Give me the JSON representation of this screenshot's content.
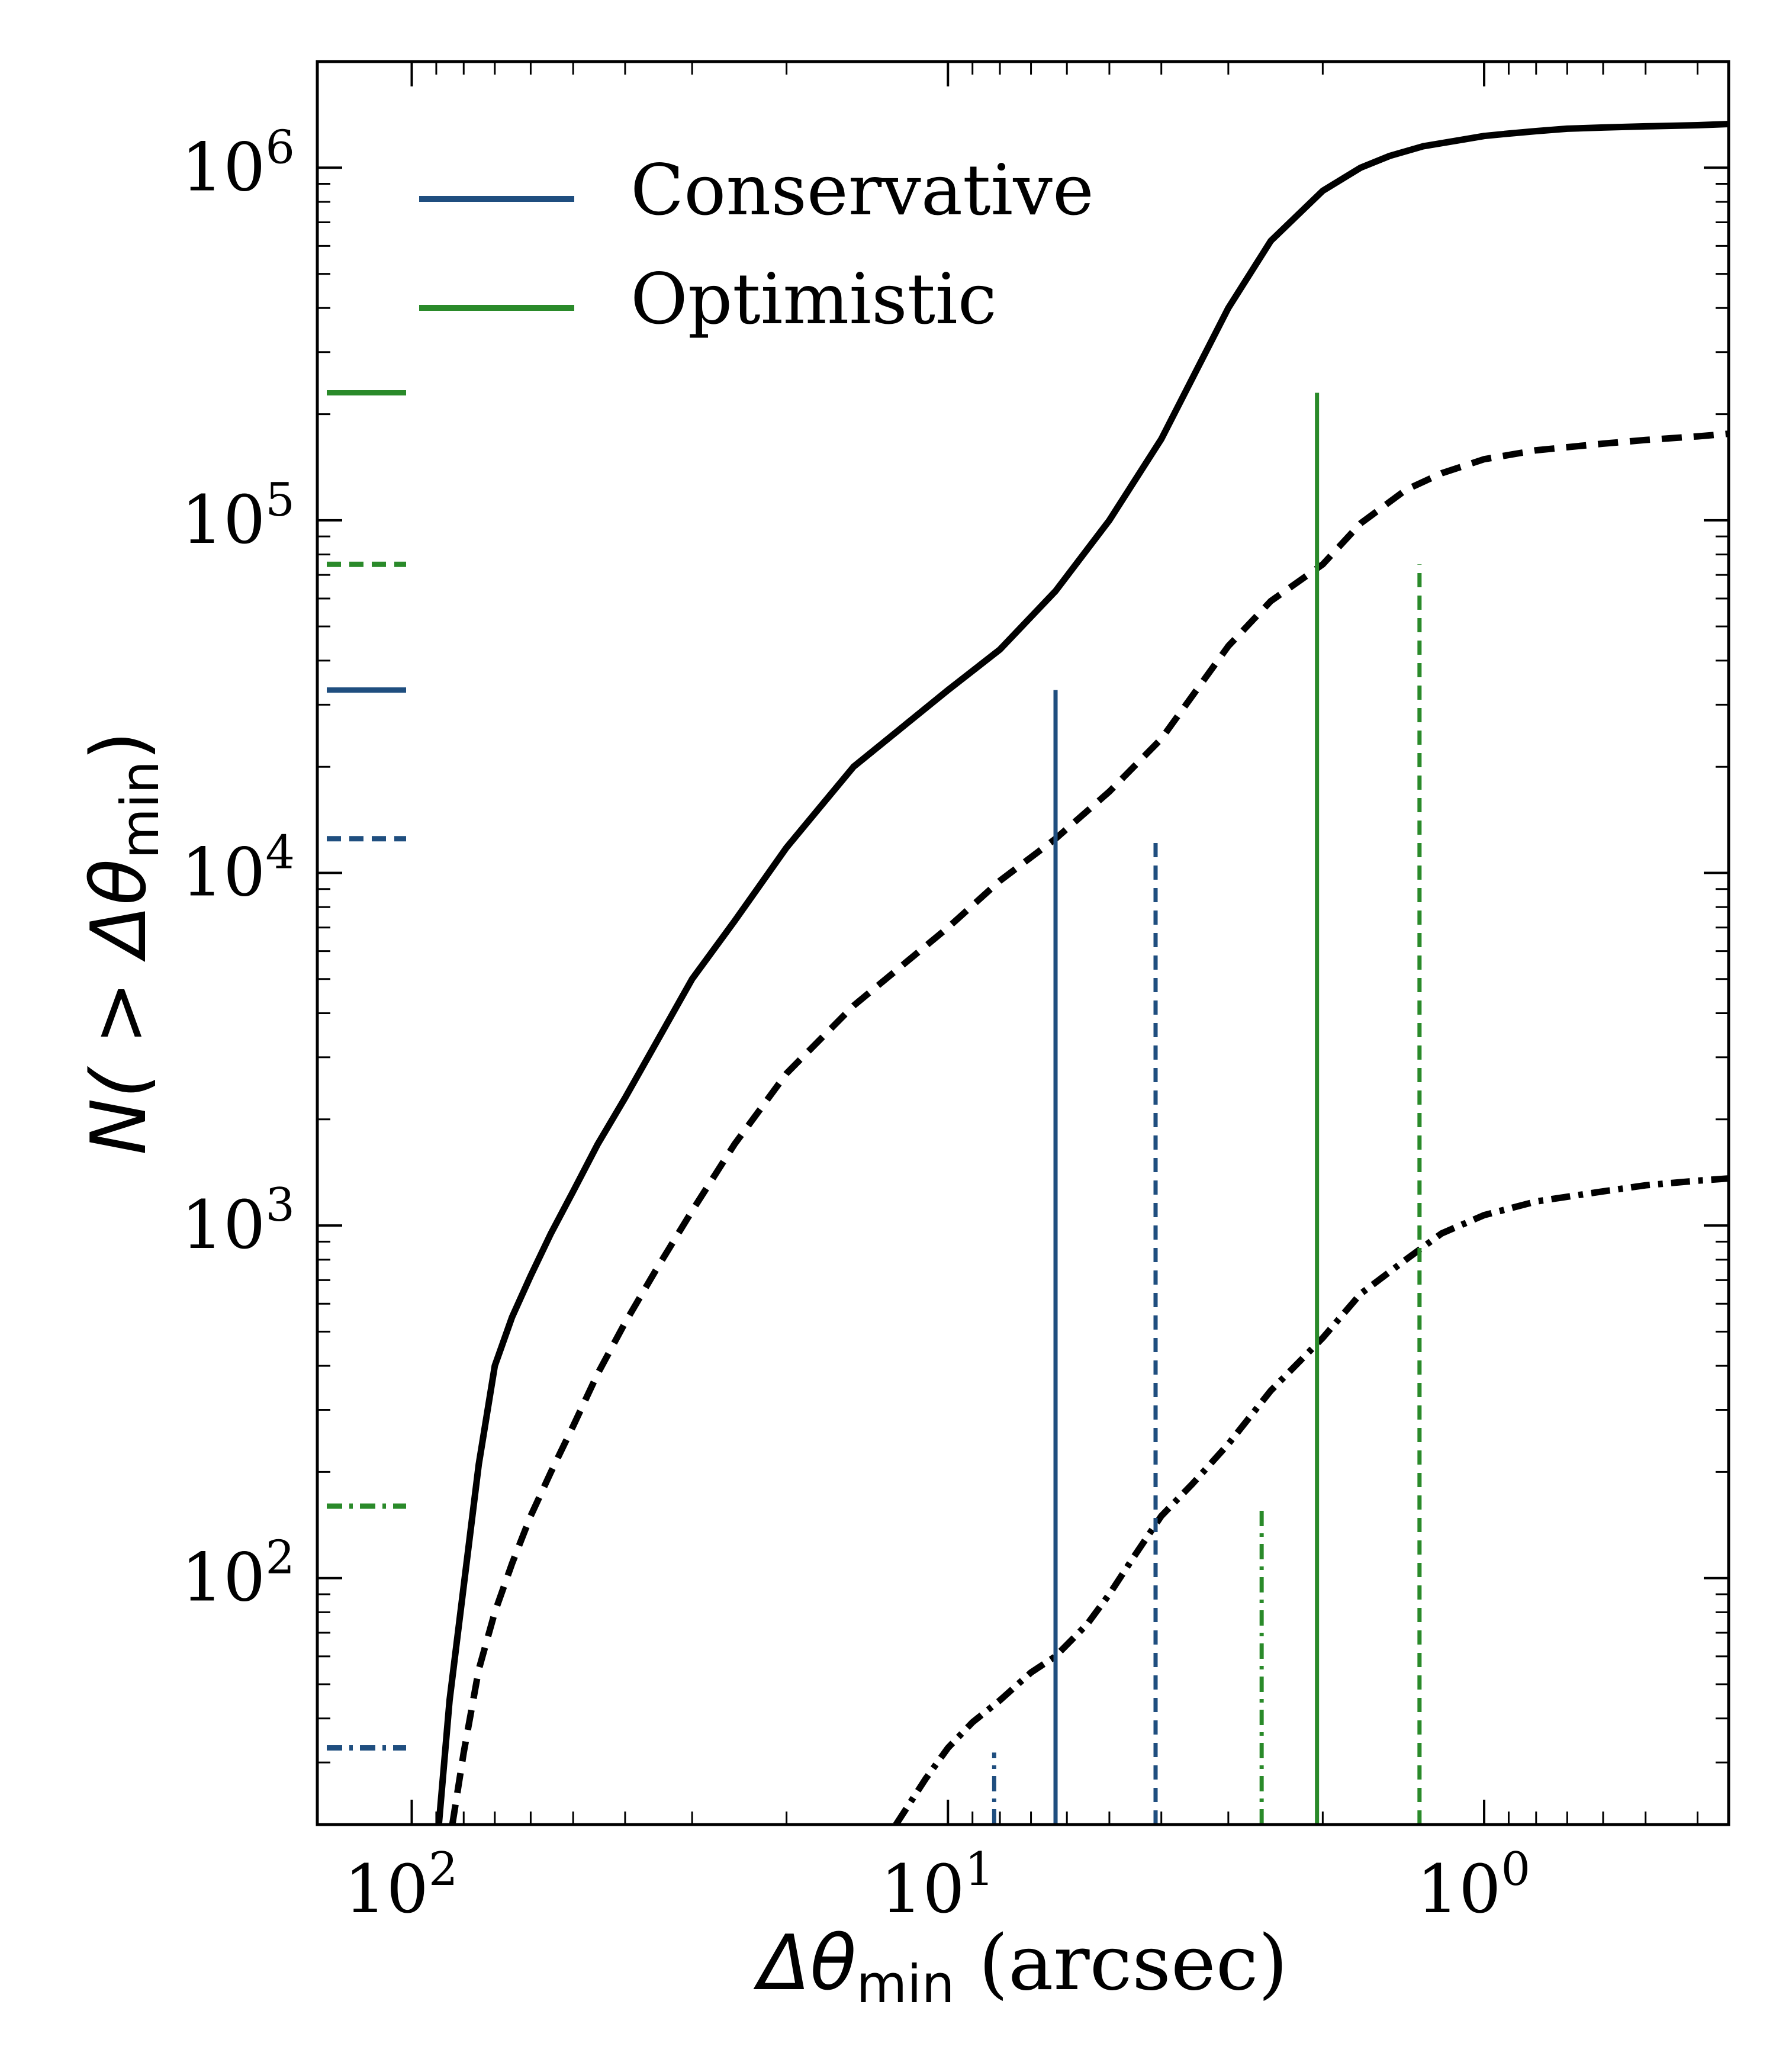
{
  "chart_data": {
    "type": "line",
    "x_scale": "log",
    "x_reversed": true,
    "y_scale": "log",
    "xlim": [
      150,
      0.35
    ],
    "ylim": [
      20,
      2000000
    ],
    "xlabel": {
      "symbol": "Δθ",
      "subscript": "min",
      "unit": " (arcsec)"
    },
    "ylabel": {
      "prefix": "N( > ",
      "symbol": "Δθ",
      "subscript": "min",
      "suffix": ")"
    },
    "x_ticks": [
      {
        "value": 100,
        "base": "10",
        "exp": "2"
      },
      {
        "value": 10,
        "base": "10",
        "exp": "1"
      },
      {
        "value": 1,
        "base": "10",
        "exp": "0"
      }
    ],
    "y_ticks": [
      {
        "value": 100,
        "base": "10",
        "exp": "2"
      },
      {
        "value": 1000,
        "base": "10",
        "exp": "3"
      },
      {
        "value": 10000,
        "base": "10",
        "exp": "4"
      },
      {
        "value": 100000,
        "base": "10",
        "exp": "5"
      },
      {
        "value": 1000000,
        "base": "10",
        "exp": "6"
      }
    ],
    "grid": false,
    "legend_position": "top-left",
    "legend": [
      {
        "label": "Conservative",
        "color": "#1f4e7f"
      },
      {
        "label": "Optimistic",
        "color": "#2a8a2a"
      }
    ],
    "series": [
      {
        "style": "solid",
        "color": "#000000",
        "x": [
          89,
          85,
          80,
          75,
          70,
          65,
          60,
          55,
          50,
          45,
          40,
          35,
          30,
          25,
          20,
          15,
          10,
          8,
          6.3,
          5,
          4,
          3,
          2.5,
          2,
          1.7,
          1.5,
          1.3,
          1.1,
          1,
          0.9,
          0.8,
          0.7,
          0.6,
          0.5,
          0.4,
          0.35
        ],
        "y": [
          20,
          45,
          95,
          210,
          400,
          550,
          720,
          950,
          1250,
          1700,
          2300,
          3300,
          5000,
          7300,
          11800,
          20000,
          33000,
          43000,
          63000,
          100000,
          170000,
          400000,
          620000,
          860000,
          1000000,
          1080000,
          1150000,
          1200000,
          1230000,
          1250000,
          1270000,
          1290000,
          1300000,
          1310000,
          1320000,
          1330000
        ]
      },
      {
        "style": "dashed",
        "color": "#000000",
        "x": [
          84,
          80,
          75,
          70,
          65,
          60,
          55,
          50,
          45,
          40,
          35,
          30,
          25,
          20,
          15,
          10,
          8,
          6.3,
          5,
          4,
          3,
          2.5,
          2,
          1.7,
          1.4,
          1.2,
          1,
          0.8,
          0.6,
          0.5,
          0.4,
          0.35
        ],
        "y": [
          20,
          32,
          55,
          80,
          110,
          150,
          200,
          270,
          380,
          530,
          750,
          1100,
          1700,
          2700,
          4200,
          7000,
          9500,
          12500,
          17000,
          24000,
          44000,
          59000,
          75000,
          98000,
          122000,
          136000,
          149000,
          158000,
          165000,
          169000,
          173000,
          176000
        ]
      },
      {
        "style": "dashdot",
        "color": "#000000",
        "x": [
          12.5,
          11,
          10,
          9,
          8,
          7,
          6.3,
          5.5,
          5,
          4.5,
          4,
          3.5,
          3,
          2.5,
          2,
          1.7,
          1.4,
          1.2,
          1,
          0.8,
          0.6,
          0.5,
          0.4,
          0.35
        ],
        "y": [
          20,
          27,
          33,
          39,
          45,
          54,
          60,
          74,
          90,
          115,
          150,
          185,
          240,
          340,
          480,
          640,
          800,
          950,
          1070,
          1170,
          1250,
          1300,
          1340,
          1360
        ]
      }
    ],
    "vertical_markers": [
      {
        "x": 8.2,
        "y": 32,
        "style": "dashdot",
        "color": "#1f4e7f"
      },
      {
        "x": 6.3,
        "y": 33000,
        "style": "solid",
        "color": "#1f4e7f"
      },
      {
        "x": 4.1,
        "y": 12500,
        "style": "dashed",
        "color": "#1f4e7f"
      },
      {
        "x": 2.6,
        "y": 160,
        "style": "dashdot",
        "color": "#2a8a2a"
      },
      {
        "x": 2.05,
        "y": 230000,
        "style": "solid",
        "color": "#2a8a2a"
      },
      {
        "x": 1.32,
        "y": 75000,
        "style": "dashed",
        "color": "#2a8a2a"
      }
    ],
    "axis_markers": [
      {
        "y": 230000,
        "style": "solid",
        "color": "#2a8a2a"
      },
      {
        "y": 75000,
        "style": "dashed",
        "color": "#2a8a2a"
      },
      {
        "y": 33000,
        "style": "solid",
        "color": "#1f4e7f"
      },
      {
        "y": 12500,
        "style": "dashed",
        "color": "#1f4e7f"
      },
      {
        "y": 160,
        "style": "dashdot",
        "color": "#2a8a2a"
      },
      {
        "y": 33,
        "style": "dashdot",
        "color": "#1f4e7f"
      }
    ]
  }
}
